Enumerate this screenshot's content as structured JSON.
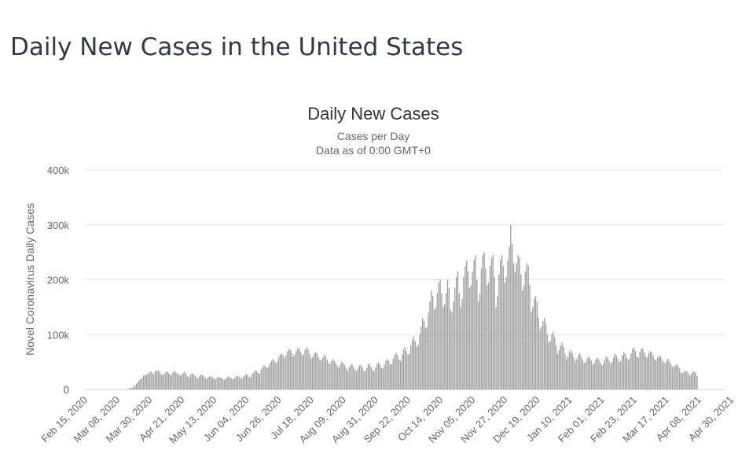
{
  "page": {
    "title": "Daily New Cases in the United States"
  },
  "chart_data": {
    "type": "bar",
    "title": "Daily New Cases",
    "subtitle_lines": [
      "Cases per Day",
      "Data as of 0:00 GMT+0"
    ],
    "xlabel": "",
    "ylabel": "Novel Coronavirus Daily Cases",
    "ylim": [
      0,
      400000
    ],
    "yticks": [
      0,
      100000,
      200000,
      300000,
      400000
    ],
    "ytick_labels": [
      "0",
      "100k",
      "200k",
      "300k",
      "400k"
    ],
    "start_date": "2020-02-15",
    "xtick_labels": [
      "Feb 15, 2020",
      "Mar 08, 2020",
      "Mar 30, 2020",
      "Apr 21, 2020",
      "May 13, 2020",
      "Jun 04, 2020",
      "Jun 26, 2020",
      "Jul 18, 2020",
      "Aug 09, 2020",
      "Aug 31, 2020",
      "Sep 22, 2020",
      "Oct 14, 2020",
      "Nov 05, 2020",
      "Nov 27, 2020",
      "Dec 19, 2020",
      "Jan 10, 2021",
      "Feb 01, 2021",
      "Feb 23, 2021",
      "Mar 17, 2021",
      "Apr 08, 2021",
      "Apr 30, 2021"
    ],
    "xtick_interval_days": 22,
    "grid": true,
    "bar_color": "#a0a0a0",
    "gridline_color": "#e6e6e6",
    "baseline_color": "#ccd6eb",
    "values_unit": "thousands of cases per day",
    "values": [
      0,
      0,
      0,
      0,
      0,
      0,
      0,
      0,
      0,
      0,
      0,
      0,
      0,
      0,
      0,
      0,
      0,
      0,
      0,
      0,
      0,
      0,
      0,
      0,
      0,
      0,
      0,
      0,
      0,
      1,
      1,
      2,
      3,
      5,
      7,
      10,
      13,
      17,
      19,
      21,
      25,
      27,
      26,
      29,
      31,
      33,
      30,
      28,
      34,
      33,
      35,
      32,
      28,
      26,
      29,
      31,
      33,
      30,
      27,
      26,
      31,
      34,
      31,
      29,
      28,
      25,
      27,
      30,
      32,
      28,
      24,
      22,
      27,
      29,
      28,
      25,
      22,
      20,
      24,
      27,
      26,
      24,
      21,
      19,
      22,
      25,
      23,
      22,
      20,
      18,
      21,
      23,
      22,
      21,
      19,
      17,
      20,
      22,
      24,
      22,
      20,
      18,
      21,
      24,
      25,
      23,
      21,
      20,
      23,
      26,
      28,
      26,
      22,
      23,
      28,
      31,
      34,
      33,
      30,
      29,
      36,
      40,
      44,
      42,
      39,
      41,
      47,
      52,
      55,
      52,
      48,
      51,
      58,
      63,
      66,
      62,
      57,
      62,
      69,
      74,
      72,
      66,
      60,
      64,
      70,
      76,
      74,
      68,
      62,
      64,
      72,
      77,
      73,
      65,
      57,
      58,
      64,
      68,
      66,
      60,
      54,
      53,
      58,
      63,
      60,
      54,
      48,
      46,
      52,
      55,
      52,
      47,
      42,
      40,
      46,
      51,
      48,
      44,
      38,
      34,
      40,
      45,
      46,
      41,
      36,
      33,
      38,
      44,
      45,
      40,
      34,
      33,
      39,
      46,
      46,
      41,
      35,
      34,
      40,
      47,
      49,
      45,
      39,
      38,
      45,
      53,
      56,
      52,
      46,
      46,
      56,
      63,
      67,
      62,
      54,
      52,
      63,
      73,
      77,
      70,
      64,
      65,
      80,
      90,
      97,
      88,
      78,
      82,
      100,
      115,
      130,
      125,
      112,
      114,
      140,
      160,
      180,
      170,
      145,
      150,
      175,
      195,
      200,
      175,
      150,
      155,
      175,
      200,
      185,
      145,
      140,
      160,
      185,
      205,
      215,
      175,
      150,
      165,
      205,
      225,
      235,
      215,
      185,
      190,
      215,
      235,
      245,
      200,
      160,
      175,
      220,
      245,
      250,
      220,
      190,
      195,
      225,
      240,
      245,
      205,
      150,
      170,
      210,
      235,
      245,
      225,
      195,
      205,
      235,
      260,
      300,
      265,
      230,
      215,
      230,
      245,
      240,
      210,
      180,
      190,
      215,
      230,
      225,
      190,
      140,
      150,
      165,
      170,
      160,
      130,
      110,
      115,
      125,
      130,
      120,
      100,
      85,
      88,
      100,
      105,
      95,
      80,
      65,
      72,
      80,
      85,
      78,
      65,
      55,
      60,
      68,
      72,
      66,
      58,
      52,
      55,
      62,
      66,
      60,
      54,
      48,
      50,
      56,
      60,
      57,
      52,
      45,
      48,
      55,
      58,
      55,
      50,
      44,
      46,
      54,
      60,
      58,
      52,
      46,
      50,
      58,
      65,
      62,
      56,
      50,
      52,
      62,
      68,
      65,
      58,
      54,
      56,
      66,
      74,
      76,
      70,
      60,
      58,
      68,
      74,
      75,
      68,
      60,
      58,
      66,
      70,
      68,
      62,
      55,
      52,
      58,
      62,
      60,
      55,
      50,
      48,
      52,
      56,
      52,
      47,
      42,
      40,
      44,
      46,
      43,
      38,
      30,
      30,
      32,
      34,
      33,
      30,
      25,
      28,
      32,
      33,
      30,
      24
    ]
  }
}
